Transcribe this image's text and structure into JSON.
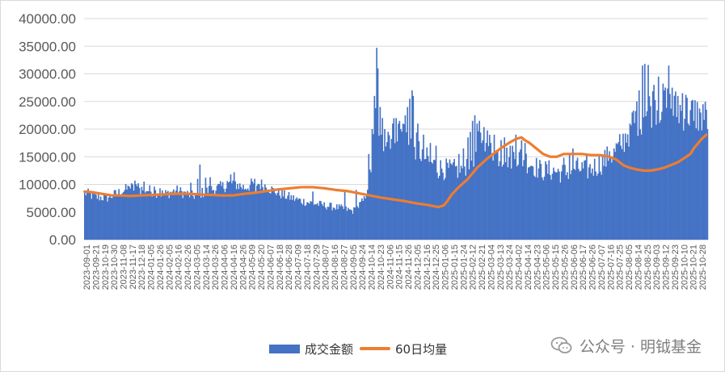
{
  "chart_data": {
    "type": "bar+line",
    "title": "",
    "xlabel": "",
    "ylabel": "",
    "ylim": [
      0,
      40000
    ],
    "y_ticks": [
      "0.00",
      "5000.00",
      "10000.00",
      "15000.00",
      "20000.00",
      "25000.00",
      "30000.00",
      "35000.00",
      "40000.00"
    ],
    "x_tick_labels": [
      "2023-09-01",
      "2023-09-21",
      "2023-10-19",
      "2023-10-30",
      "2023-11-08",
      "2023-11-17",
      "2023-12-18",
      "2024-01-05",
      "2024-01-26",
      "2024-02-05",
      "2024-02-16",
      "2024-02-26",
      "2024-03-05",
      "2024-03-14",
      "2024-03-26",
      "2024-04-06",
      "2024-04-16",
      "2024-04-26",
      "2024-05-09",
      "2024-05-20",
      "2024-06-07",
      "2024-06-18",
      "2024-06-28",
      "2024-07-09",
      "2024-07-18",
      "2024-07-29",
      "2024-08-07",
      "2024-08-16",
      "2024-08-27",
      "2024-09-05",
      "2024-09-24",
      "2024-10-14",
      "2024-10-23",
      "2024-11-06",
      "2024-11-15",
      "2024-11-26",
      "2024-12-05",
      "2024-12-16",
      "2024-12-25",
      "2025-01-06",
      "2025-01-15",
      "2025-01-24",
      "2025-02-12",
      "2025-02-21",
      "2025-03-04",
      "2025-03-13",
      "2025-03-24",
      "2025-04-02",
      "2025-04-14",
      "2025-04-23",
      "2025-05-06",
      "2025-05-15",
      "2025-05-26",
      "2025-06-06",
      "2025-06-17",
      "2025-06-26",
      "2025-07-07",
      "2025-07-16",
      "2025-07-25",
      "2025-08-05",
      "2025-08-14",
      "2025-08-25",
      "2025-09-03",
      "2025-09-12",
      "2025-09-23",
      "2025-10-10",
      "2025-10-21",
      "2025-10-28"
    ],
    "series": [
      {
        "name": "成交金额",
        "type": "bar",
        "color": "#4472C4",
        "anchors": [
          [
            0,
            8500
          ],
          [
            10,
            7700
          ],
          [
            20,
            7600
          ],
          [
            30,
            8500
          ],
          [
            40,
            9400
          ],
          [
            55,
            9000
          ],
          [
            70,
            8200
          ],
          [
            80,
            8900
          ],
          [
            95,
            7900
          ],
          [
            110,
            9000
          ],
          [
            120,
            9500
          ],
          [
            130,
            10300
          ],
          [
            140,
            9400
          ],
          [
            150,
            10300
          ],
          [
            160,
            9600
          ],
          [
            165,
            8900
          ],
          [
            175,
            8000
          ],
          [
            190,
            7000
          ],
          [
            210,
            6200
          ],
          [
            225,
            5700
          ],
          [
            235,
            5200
          ],
          [
            238,
            5600
          ],
          [
            245,
            7200
          ],
          [
            249,
            10500
          ],
          [
            252,
            14500
          ],
          [
            256,
            25000
          ],
          [
            258,
            17000
          ],
          [
            262,
            18000
          ],
          [
            270,
            19500
          ],
          [
            280,
            19000
          ],
          [
            290,
            17000
          ],
          [
            300,
            14500
          ],
          [
            310,
            13000
          ],
          [
            320,
            12600
          ],
          [
            330,
            12700
          ],
          [
            340,
            15000
          ],
          [
            350,
            19000
          ],
          [
            355,
            17000
          ],
          [
            360,
            15500
          ],
          [
            370,
            15000
          ],
          [
            380,
            15000
          ],
          [
            390,
            14000
          ],
          [
            400,
            12500
          ],
          [
            410,
            12500
          ],
          [
            420,
            12000
          ],
          [
            430,
            13000
          ],
          [
            440,
            12500
          ],
          [
            450,
            13500
          ],
          [
            460,
            15000
          ],
          [
            470,
            17000
          ],
          [
            480,
            21000
          ],
          [
            490,
            23000
          ],
          [
            500,
            24500
          ],
          [
            510,
            24500
          ],
          [
            520,
            23500
          ],
          [
            530,
            23000
          ],
          [
            540,
            22500
          ],
          [
            546,
            22000
          ]
        ],
        "spikes": [
          [
            39,
            9600
          ],
          [
            42,
            10000
          ],
          [
            44,
            10700
          ],
          [
            47,
            10200
          ],
          [
            52,
            10500
          ],
          [
            61,
            9600
          ],
          [
            66,
            9300
          ],
          [
            93,
            10300
          ],
          [
            99,
            11000
          ],
          [
            101,
            13600
          ],
          [
            106,
            11200
          ],
          [
            110,
            11300
          ],
          [
            125,
            10600
          ],
          [
            128,
            11800
          ],
          [
            131,
            12200
          ],
          [
            145,
            9900
          ],
          [
            150,
            8600
          ],
          [
            200,
            8700
          ],
          [
            228,
            9000
          ],
          [
            238,
            9000
          ],
          [
            249,
            15500
          ],
          [
            252,
            20000
          ],
          [
            254,
            26000
          ],
          [
            256,
            34700
          ],
          [
            257,
            31000
          ],
          [
            259,
            24000
          ],
          [
            261,
            22000
          ],
          [
            263,
            20000
          ],
          [
            266,
            19500
          ],
          [
            270,
            21000
          ],
          [
            273,
            22000
          ],
          [
            276,
            21500
          ],
          [
            279,
            21000
          ],
          [
            281,
            22500
          ],
          [
            283,
            24000
          ],
          [
            285,
            25500
          ],
          [
            287,
            27000
          ],
          [
            288,
            26000
          ],
          [
            292,
            21000
          ],
          [
            297,
            19000
          ],
          [
            303,
            17500
          ],
          [
            308,
            17000
          ],
          [
            328,
            15500
          ],
          [
            332,
            16500
          ],
          [
            336,
            18500
          ],
          [
            338,
            19500
          ],
          [
            340,
            21500
          ],
          [
            342,
            22500
          ],
          [
            344,
            21000
          ],
          [
            346,
            21500
          ],
          [
            349,
            18000
          ],
          [
            352,
            17500
          ],
          [
            356,
            17500
          ],
          [
            359,
            19000
          ],
          [
            365,
            18000
          ],
          [
            368,
            18500
          ],
          [
            375,
            17000
          ],
          [
            378,
            19000
          ],
          [
            383,
            18000
          ],
          [
            386,
            17500
          ],
          [
            420,
            14800
          ],
          [
            425,
            15500
          ],
          [
            428,
            16500
          ],
          [
            440,
            15500
          ],
          [
            460,
            16000
          ],
          [
            464,
            16500
          ],
          [
            470,
            17000
          ],
          [
            478,
            21000
          ],
          [
            484,
            25000
          ],
          [
            486,
            27000
          ],
          [
            489,
            31500
          ],
          [
            491,
            31800
          ],
          [
            494,
            31600
          ],
          [
            499,
            28000
          ],
          [
            503,
            29500
          ],
          [
            508,
            27000
          ],
          [
            512,
            31500
          ],
          [
            515,
            27500
          ],
          [
            520,
            26000
          ],
          [
            524,
            26500
          ],
          [
            527,
            26200
          ],
          [
            534,
            21500
          ],
          [
            540,
            23000
          ],
          [
            542,
            24500
          ],
          [
            545,
            23500
          ]
        ],
        "note": ""
      },
      {
        "name": "60日均量",
        "type": "line",
        "color": "#ED7D31",
        "points": [
          [
            0,
            8700
          ],
          [
            6,
            8600
          ],
          [
            12,
            8400
          ],
          [
            18,
            8200
          ],
          [
            24,
            8000
          ],
          [
            30,
            8000
          ],
          [
            40,
            7900
          ],
          [
            50,
            8000
          ],
          [
            60,
            8100
          ],
          [
            70,
            8200
          ],
          [
            80,
            8300
          ],
          [
            90,
            8300
          ],
          [
            100,
            8200
          ],
          [
            110,
            8100
          ],
          [
            120,
            8000
          ],
          [
            130,
            8000
          ],
          [
            140,
            8300
          ],
          [
            150,
            8500
          ],
          [
            160,
            8800
          ],
          [
            170,
            9100
          ],
          [
            180,
            9300
          ],
          [
            190,
            9500
          ],
          [
            200,
            9500
          ],
          [
            210,
            9300
          ],
          [
            220,
            9000
          ],
          [
            230,
            8800
          ],
          [
            240,
            8400
          ],
          [
            250,
            8000
          ],
          [
            260,
            7600
          ],
          [
            270,
            7300
          ],
          [
            280,
            7000
          ],
          [
            290,
            6600
          ],
          [
            300,
            6300
          ],
          [
            305,
            6100
          ],
          [
            310,
            5900
          ],
          [
            315,
            6200
          ],
          [
            318,
            7000
          ],
          [
            322,
            8200
          ],
          [
            328,
            9500
          ],
          [
            336,
            11000
          ],
          [
            344,
            13000
          ],
          [
            352,
            14500
          ],
          [
            360,
            15800
          ],
          [
            366,
            16700
          ],
          [
            372,
            17500
          ],
          [
            378,
            18200
          ],
          [
            383,
            18500
          ],
          [
            386,
            18000
          ],
          [
            390,
            17500
          ],
          [
            396,
            16500
          ],
          [
            402,
            15500
          ],
          [
            408,
            15000
          ],
          [
            414,
            15000
          ],
          [
            420,
            15500
          ],
          [
            428,
            15500
          ],
          [
            436,
            15500
          ],
          [
            444,
            15300
          ],
          [
            452,
            15300
          ],
          [
            460,
            15000
          ],
          [
            466,
            14500
          ],
          [
            472,
            13500
          ],
          [
            478,
            13000
          ],
          [
            484,
            12700
          ],
          [
            490,
            12500
          ],
          [
            496,
            12500
          ],
          [
            502,
            12700
          ],
          [
            508,
            13000
          ],
          [
            514,
            13500
          ],
          [
            520,
            14000
          ],
          [
            526,
            14800
          ],
          [
            531,
            15500
          ],
          [
            534,
            16500
          ],
          [
            540,
            18000
          ],
          [
            545,
            19000
          ]
        ]
      }
    ]
  },
  "legend": {
    "bar_label": "成交金额",
    "line_label": "60日均量"
  },
  "watermark": {
    "text": "公众号 · 明钺基金"
  }
}
